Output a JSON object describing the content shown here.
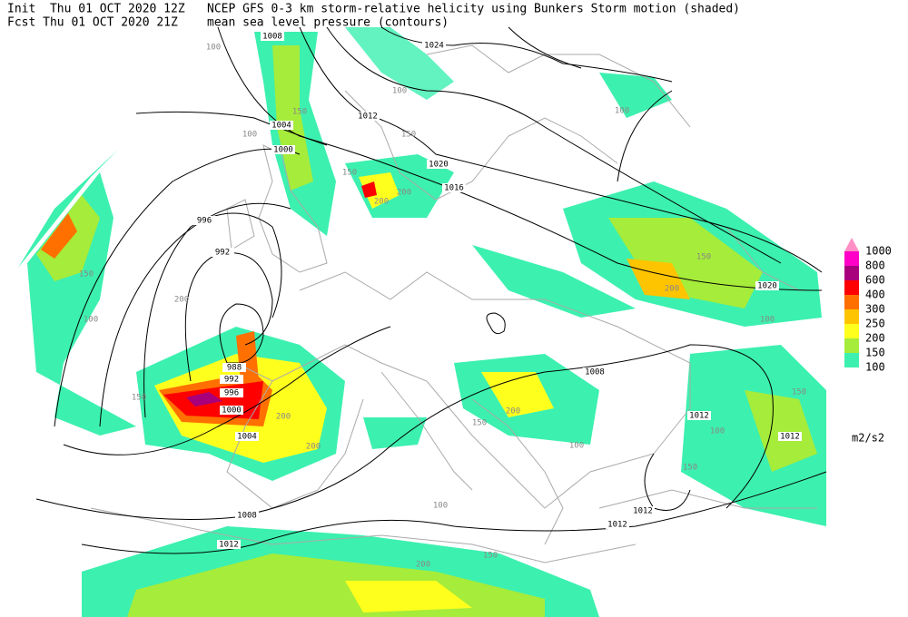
{
  "header": {
    "init": "Init  Thu 01 OCT 2020 12Z",
    "title": "NCEP GFS 0-3 km storm-relative helicity using Bunkers Storm motion (shaded)",
    "fcst": "Fcst Thu 01 OCT 2020 21Z",
    "subtitle": "mean sea level pressure (contours)"
  },
  "legend": {
    "levels": [
      1000,
      800,
      600,
      400,
      300,
      250,
      200,
      150,
      100
    ],
    "colors": [
      "#ff8fc4",
      "#ff00c8",
      "#a8007c",
      "#ff0000",
      "#ff7000",
      "#ffc400",
      "#ffff1e",
      "#a6ec3a",
      "#3cf0b0"
    ],
    "unit": "m2/s2"
  },
  "contours": {
    "labels": [
      "1008",
      "1024",
      "1012",
      "1004",
      "1000",
      "1020",
      "1016",
      "996",
      "992",
      "988",
      "992",
      "996",
      "1000",
      "1004",
      "1008",
      "1012",
      "1020",
      "1012",
      "1012",
      "1012",
      "1008",
      "1012"
    ]
  },
  "shading": {
    "labels": [
      "100",
      "150",
      "100",
      "150",
      "200",
      "100",
      "150",
      "200",
      "100",
      "150",
      "200",
      "150",
      "200",
      "100",
      "150",
      "200",
      "100",
      "150",
      "100",
      "200",
      "150",
      "100",
      "150",
      "100",
      "200",
      "150",
      "200"
    ]
  }
}
